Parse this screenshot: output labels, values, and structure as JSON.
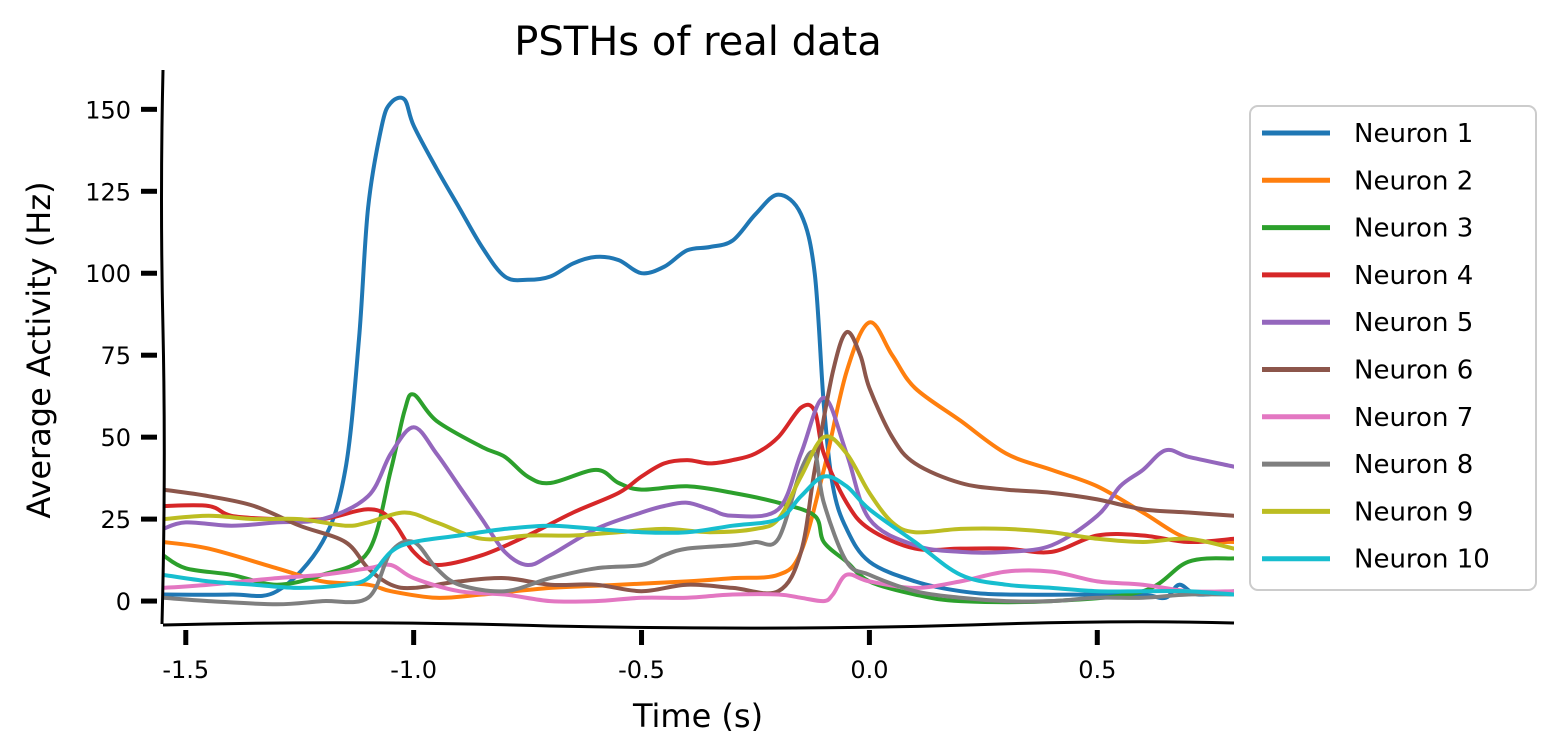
{
  "chart_data": {
    "type": "line",
    "title": "PSTHs of real data",
    "xlabel": "Time (s)",
    "ylabel": "Average Activity (Hz)",
    "xlim": [
      -1.55,
      0.8
    ],
    "ylim": [
      -7,
      162
    ],
    "xticks": [
      -1.5,
      -1.0,
      -0.5,
      0.0,
      0.5
    ],
    "xtick_labels": [
      "-1.5",
      "-1.0",
      "-0.5",
      "0.0",
      "0.5"
    ],
    "yticks": [
      0,
      25,
      50,
      75,
      100,
      125,
      150
    ],
    "ytick_labels": [
      "0",
      "25",
      "50",
      "75",
      "100",
      "125",
      "150"
    ],
    "legend_position": "right",
    "series": [
      {
        "name": "Neuron 1",
        "color": "#1f77b4",
        "points": [
          [
            -1.55,
            2
          ],
          [
            -1.4,
            2
          ],
          [
            -1.3,
            3
          ],
          [
            -1.2,
            18
          ],
          [
            -1.15,
            40
          ],
          [
            -1.12,
            80
          ],
          [
            -1.1,
            120
          ],
          [
            -1.07,
            145
          ],
          [
            -1.05,
            152
          ],
          [
            -1.02,
            153
          ],
          [
            -1.0,
            145
          ],
          [
            -0.95,
            132
          ],
          [
            -0.9,
            120
          ],
          [
            -0.85,
            108
          ],
          [
            -0.8,
            99
          ],
          [
            -0.75,
            98
          ],
          [
            -0.7,
            99
          ],
          [
            -0.65,
            103
          ],
          [
            -0.6,
            105
          ],
          [
            -0.55,
            104
          ],
          [
            -0.5,
            100
          ],
          [
            -0.45,
            102
          ],
          [
            -0.4,
            107
          ],
          [
            -0.35,
            108
          ],
          [
            -0.3,
            110
          ],
          [
            -0.25,
            118
          ],
          [
            -0.2,
            124
          ],
          [
            -0.15,
            118
          ],
          [
            -0.12,
            100
          ],
          [
            -0.1,
            60
          ],
          [
            -0.08,
            35
          ],
          [
            -0.05,
            22
          ],
          [
            0.0,
            12
          ],
          [
            0.1,
            6
          ],
          [
            0.2,
            3
          ],
          [
            0.3,
            2
          ],
          [
            0.5,
            2
          ],
          [
            0.6,
            2
          ],
          [
            0.65,
            1
          ],
          [
            0.68,
            5
          ],
          [
            0.72,
            2
          ],
          [
            0.8,
            3
          ]
        ]
      },
      {
        "name": "Neuron 2",
        "color": "#ff7f0e",
        "points": [
          [
            -1.55,
            18
          ],
          [
            -1.45,
            16
          ],
          [
            -1.3,
            10
          ],
          [
            -1.2,
            6
          ],
          [
            -1.1,
            5
          ],
          [
            -1.05,
            3
          ],
          [
            -0.95,
            1
          ],
          [
            -0.85,
            2
          ],
          [
            -0.7,
            4
          ],
          [
            -0.55,
            5
          ],
          [
            -0.4,
            6
          ],
          [
            -0.3,
            7
          ],
          [
            -0.2,
            8
          ],
          [
            -0.15,
            15
          ],
          [
            -0.1,
            40
          ],
          [
            -0.05,
            70
          ],
          [
            0.0,
            85
          ],
          [
            0.05,
            75
          ],
          [
            0.1,
            65
          ],
          [
            0.2,
            55
          ],
          [
            0.3,
            45
          ],
          [
            0.4,
            40
          ],
          [
            0.5,
            35
          ],
          [
            0.6,
            27
          ],
          [
            0.7,
            19
          ],
          [
            0.8,
            18
          ]
        ]
      },
      {
        "name": "Neuron 3",
        "color": "#2ca02c",
        "points": [
          [
            -1.55,
            14
          ],
          [
            -1.5,
            10
          ],
          [
            -1.4,
            8
          ],
          [
            -1.3,
            5
          ],
          [
            -1.2,
            8
          ],
          [
            -1.1,
            15
          ],
          [
            -1.05,
            40
          ],
          [
            -1.02,
            58
          ],
          [
            -1.0,
            63
          ],
          [
            -0.95,
            55
          ],
          [
            -0.85,
            47
          ],
          [
            -0.8,
            44
          ],
          [
            -0.75,
            38
          ],
          [
            -0.7,
            36
          ],
          [
            -0.6,
            40
          ],
          [
            -0.55,
            36
          ],
          [
            -0.5,
            34
          ],
          [
            -0.4,
            35
          ],
          [
            -0.3,
            33
          ],
          [
            -0.2,
            30
          ],
          [
            -0.12,
            26
          ],
          [
            -0.1,
            18
          ],
          [
            -0.05,
            12
          ],
          [
            0.0,
            6
          ],
          [
            0.1,
            2
          ],
          [
            0.2,
            0
          ],
          [
            0.4,
            0
          ],
          [
            0.6,
            3
          ],
          [
            0.7,
            12
          ],
          [
            0.8,
            13
          ]
        ]
      },
      {
        "name": "Neuron 4",
        "color": "#d62728",
        "points": [
          [
            -1.55,
            29
          ],
          [
            -1.45,
            29
          ],
          [
            -1.4,
            26
          ],
          [
            -1.3,
            25
          ],
          [
            -1.2,
            25
          ],
          [
            -1.1,
            28
          ],
          [
            -1.05,
            25
          ],
          [
            -1.0,
            15
          ],
          [
            -0.95,
            11
          ],
          [
            -0.85,
            14
          ],
          [
            -0.75,
            20
          ],
          [
            -0.65,
            27
          ],
          [
            -0.55,
            33
          ],
          [
            -0.5,
            38
          ],
          [
            -0.45,
            42
          ],
          [
            -0.4,
            43
          ],
          [
            -0.35,
            42
          ],
          [
            -0.3,
            43
          ],
          [
            -0.25,
            45
          ],
          [
            -0.2,
            50
          ],
          [
            -0.15,
            59
          ],
          [
            -0.12,
            58
          ],
          [
            -0.1,
            45
          ],
          [
            -0.05,
            30
          ],
          [
            0.0,
            22
          ],
          [
            0.1,
            16
          ],
          [
            0.2,
            16
          ],
          [
            0.3,
            16
          ],
          [
            0.4,
            15
          ],
          [
            0.5,
            20
          ],
          [
            0.6,
            20
          ],
          [
            0.7,
            18
          ],
          [
            0.8,
            19
          ]
        ]
      },
      {
        "name": "Neuron 5",
        "color": "#9467bd",
        "points": [
          [
            -1.55,
            22
          ],
          [
            -1.5,
            24
          ],
          [
            -1.4,
            23
          ],
          [
            -1.3,
            24
          ],
          [
            -1.2,
            25
          ],
          [
            -1.1,
            32
          ],
          [
            -1.05,
            45
          ],
          [
            -1.0,
            53
          ],
          [
            -0.95,
            45
          ],
          [
            -0.9,
            35
          ],
          [
            -0.85,
            25
          ],
          [
            -0.8,
            15
          ],
          [
            -0.75,
            11
          ],
          [
            -0.7,
            14
          ],
          [
            -0.6,
            22
          ],
          [
            -0.5,
            27
          ],
          [
            -0.45,
            29
          ],
          [
            -0.4,
            30
          ],
          [
            -0.35,
            28
          ],
          [
            -0.3,
            26
          ],
          [
            -0.2,
            28
          ],
          [
            -0.15,
            45
          ],
          [
            -0.1,
            62
          ],
          [
            -0.05,
            45
          ],
          [
            0.0,
            25
          ],
          [
            0.1,
            17
          ],
          [
            0.2,
            15
          ],
          [
            0.3,
            15
          ],
          [
            0.4,
            17
          ],
          [
            0.5,
            26
          ],
          [
            0.55,
            35
          ],
          [
            0.6,
            40
          ],
          [
            0.65,
            46
          ],
          [
            0.7,
            44
          ],
          [
            0.8,
            41
          ]
        ]
      },
      {
        "name": "Neuron 6",
        "color": "#8c564b",
        "points": [
          [
            -1.55,
            34
          ],
          [
            -1.45,
            32
          ],
          [
            -1.35,
            29
          ],
          [
            -1.25,
            23
          ],
          [
            -1.15,
            18
          ],
          [
            -1.1,
            10
          ],
          [
            -1.05,
            5
          ],
          [
            -1.0,
            4
          ],
          [
            -0.9,
            6
          ],
          [
            -0.8,
            7
          ],
          [
            -0.7,
            5
          ],
          [
            -0.6,
            5
          ],
          [
            -0.5,
            3
          ],
          [
            -0.4,
            5
          ],
          [
            -0.3,
            4
          ],
          [
            -0.2,
            3
          ],
          [
            -0.15,
            15
          ],
          [
            -0.12,
            40
          ],
          [
            -0.08,
            70
          ],
          [
            -0.05,
            82
          ],
          [
            -0.02,
            75
          ],
          [
            0.0,
            65
          ],
          [
            0.05,
            50
          ],
          [
            0.1,
            42
          ],
          [
            0.2,
            36
          ],
          [
            0.3,
            34
          ],
          [
            0.4,
            33
          ],
          [
            0.5,
            31
          ],
          [
            0.6,
            28
          ],
          [
            0.7,
            27
          ],
          [
            0.8,
            26
          ]
        ]
      },
      {
        "name": "Neuron 7",
        "color": "#e377c2",
        "points": [
          [
            -1.55,
            4
          ],
          [
            -1.45,
            5
          ],
          [
            -1.3,
            7
          ],
          [
            -1.2,
            8
          ],
          [
            -1.1,
            10
          ],
          [
            -1.05,
            11
          ],
          [
            -1.0,
            7
          ],
          [
            -0.9,
            3
          ],
          [
            -0.8,
            2
          ],
          [
            -0.7,
            0
          ],
          [
            -0.6,
            0
          ],
          [
            -0.5,
            1
          ],
          [
            -0.4,
            1
          ],
          [
            -0.3,
            2
          ],
          [
            -0.2,
            2
          ],
          [
            -0.15,
            1
          ],
          [
            -0.1,
            0
          ],
          [
            -0.08,
            2
          ],
          [
            -0.05,
            8
          ],
          [
            0.0,
            6
          ],
          [
            0.1,
            4
          ],
          [
            0.2,
            6
          ],
          [
            0.3,
            9
          ],
          [
            0.4,
            9
          ],
          [
            0.5,
            6
          ],
          [
            0.6,
            5
          ],
          [
            0.7,
            3
          ],
          [
            0.8,
            3
          ]
        ]
      },
      {
        "name": "Neuron 8",
        "color": "#7f7f7f",
        "points": [
          [
            -1.55,
            1
          ],
          [
            -1.45,
            0
          ],
          [
            -1.3,
            -1
          ],
          [
            -1.2,
            0
          ],
          [
            -1.1,
            1
          ],
          [
            -1.05,
            15
          ],
          [
            -1.0,
            18
          ],
          [
            -0.95,
            10
          ],
          [
            -0.9,
            5
          ],
          [
            -0.8,
            3
          ],
          [
            -0.7,
            7
          ],
          [
            -0.6,
            10
          ],
          [
            -0.5,
            11
          ],
          [
            -0.45,
            14
          ],
          [
            -0.4,
            16
          ],
          [
            -0.3,
            17
          ],
          [
            -0.25,
            18
          ],
          [
            -0.2,
            19
          ],
          [
            -0.15,
            40
          ],
          [
            -0.12,
            45
          ],
          [
            -0.1,
            30
          ],
          [
            -0.05,
            12
          ],
          [
            0.0,
            8
          ],
          [
            0.1,
            3
          ],
          [
            0.2,
            1
          ],
          [
            0.3,
            0
          ],
          [
            0.4,
            0
          ],
          [
            0.5,
            1
          ],
          [
            0.6,
            1
          ],
          [
            0.7,
            2
          ],
          [
            0.8,
            2
          ]
        ]
      },
      {
        "name": "Neuron 9",
        "color": "#bcbd22",
        "points": [
          [
            -1.55,
            25
          ],
          [
            -1.45,
            26
          ],
          [
            -1.35,
            25
          ],
          [
            -1.25,
            25
          ],
          [
            -1.15,
            23
          ],
          [
            -1.1,
            24
          ],
          [
            -1.02,
            27
          ],
          [
            -0.95,
            24
          ],
          [
            -0.85,
            19
          ],
          [
            -0.75,
            20
          ],
          [
            -0.65,
            20
          ],
          [
            -0.55,
            21
          ],
          [
            -0.45,
            22
          ],
          [
            -0.35,
            21
          ],
          [
            -0.25,
            22
          ],
          [
            -0.2,
            25
          ],
          [
            -0.15,
            38
          ],
          [
            -0.1,
            50
          ],
          [
            -0.05,
            45
          ],
          [
            0.0,
            33
          ],
          [
            0.05,
            24
          ],
          [
            0.1,
            21
          ],
          [
            0.2,
            22
          ],
          [
            0.3,
            22
          ],
          [
            0.4,
            21
          ],
          [
            0.5,
            19
          ],
          [
            0.6,
            18
          ],
          [
            0.7,
            19
          ],
          [
            0.8,
            16
          ]
        ]
      },
      {
        "name": "Neuron 10",
        "color": "#17becf",
        "points": [
          [
            -1.55,
            8
          ],
          [
            -1.45,
            6
          ],
          [
            -1.35,
            5
          ],
          [
            -1.25,
            4
          ],
          [
            -1.15,
            5
          ],
          [
            -1.1,
            7
          ],
          [
            -1.05,
            15
          ],
          [
            -1.0,
            18
          ],
          [
            -0.9,
            20
          ],
          [
            -0.8,
            22
          ],
          [
            -0.7,
            23
          ],
          [
            -0.6,
            22
          ],
          [
            -0.5,
            21
          ],
          [
            -0.4,
            21
          ],
          [
            -0.3,
            23
          ],
          [
            -0.2,
            25
          ],
          [
            -0.15,
            32
          ],
          [
            -0.1,
            38
          ],
          [
            -0.05,
            35
          ],
          [
            0.0,
            28
          ],
          [
            0.1,
            18
          ],
          [
            0.2,
            8
          ],
          [
            0.3,
            5
          ],
          [
            0.4,
            4
          ],
          [
            0.5,
            3
          ],
          [
            0.6,
            3
          ],
          [
            0.7,
            3
          ],
          [
            0.8,
            2
          ]
        ]
      }
    ]
  }
}
